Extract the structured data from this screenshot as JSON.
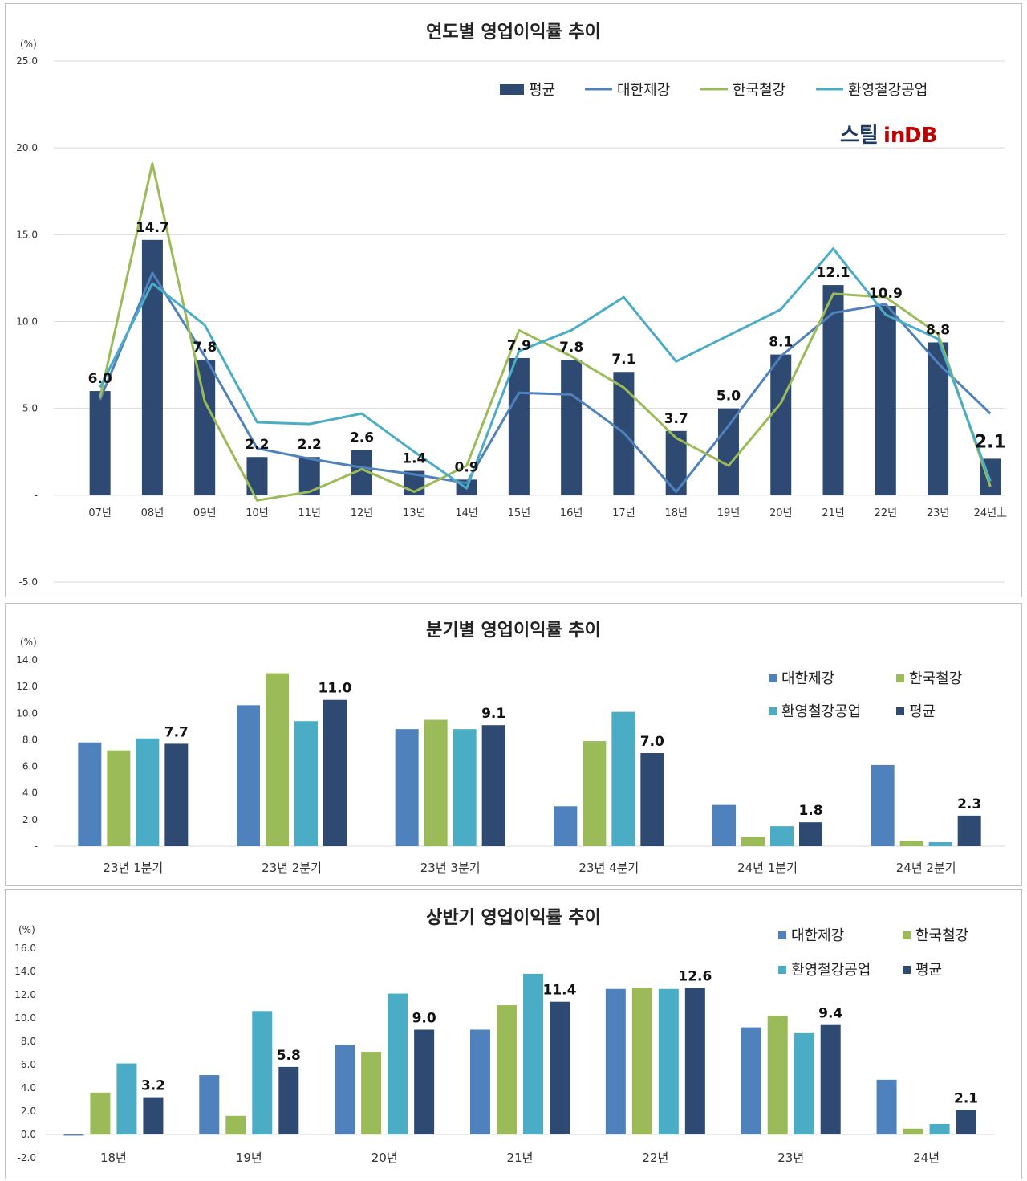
{
  "colors": {
    "avg": "#2e4a72",
    "daehan": "#4f81bd",
    "hankook": "#9bbb59",
    "hwanyoung": "#4bacc6",
    "highlight": "#c00000"
  },
  "logo": {
    "part1": "스틸",
    "part2": "in",
    "part3": "DB"
  },
  "chart_data": [
    {
      "type": "bar+line",
      "title": "연도별 영업이익률 추이",
      "unit": "(%)",
      "ylim": [
        -5,
        25
      ],
      "yticks": [
        "-5.0",
        "-",
        "5.0",
        "10.0",
        "15.0",
        "20.0",
        "25.0"
      ],
      "legend": [
        "평균",
        "대한제강",
        "한국철강",
        "환영철강공업"
      ],
      "legend_position": "top-right",
      "categories": [
        "07년",
        "08년",
        "09년",
        "10년",
        "11년",
        "12년",
        "13년",
        "14년",
        "15년",
        "16년",
        "17년",
        "18년",
        "19년",
        "20년",
        "21년",
        "22년",
        "23년",
        "24년上"
      ],
      "bar_series": {
        "name": "평균",
        "values": [
          6.0,
          14.7,
          7.8,
          2.2,
          2.2,
          2.6,
          1.4,
          0.9,
          7.9,
          7.8,
          7.1,
          3.7,
          5.0,
          8.1,
          12.1,
          10.9,
          8.8,
          2.1
        ]
      },
      "bar_labels": [
        "6.0",
        "14.7",
        "7.8",
        "2.2",
        "2.2",
        "2.6",
        "1.4",
        "0.9",
        "7.9",
        "7.8",
        "7.1",
        "3.7",
        "5.0",
        "8.1",
        "12.1",
        "10.9",
        "8.8",
        "2.1"
      ],
      "highlighted_labels": [
        7,
        17
      ],
      "line_series": [
        {
          "name": "대한제강",
          "values": [
            5.5,
            12.8,
            8.0,
            2.7,
            2.1,
            1.6,
            1.2,
            0.7,
            5.9,
            5.8,
            3.6,
            0.2,
            4.0,
            8.0,
            10.5,
            11.0,
            7.6,
            4.7
          ]
        },
        {
          "name": "한국철강",
          "values": [
            5.6,
            19.1,
            5.4,
            -0.3,
            0.2,
            1.5,
            0.2,
            1.7,
            9.5,
            8.0,
            6.2,
            3.3,
            1.7,
            5.3,
            11.6,
            11.4,
            9.3,
            0.5
          ]
        },
        {
          "name": "환영철강공업",
          "values": [
            6.2,
            12.2,
            9.8,
            4.2,
            4.1,
            4.7,
            2.5,
            0.4,
            8.3,
            9.5,
            11.4,
            7.7,
            9.2,
            10.7,
            14.2,
            10.4,
            9.0,
            0.8
          ]
        }
      ]
    },
    {
      "type": "bar",
      "title": "분기별 영업이익률 추이",
      "unit": "(%)",
      "ylim": [
        0,
        14
      ],
      "yticks": [
        "-",
        "2.0",
        "4.0",
        "6.0",
        "8.0",
        "10.0",
        "12.0",
        "14.0"
      ],
      "legend": [
        "대한제강",
        "한국철강",
        "환영철강공업",
        "평균"
      ],
      "legend_position": "top-right",
      "categories": [
        "23년 1분기",
        "23년 2분기",
        "23년 3분기",
        "23년 4분기",
        "24년 1분기",
        "24년 2분기"
      ],
      "series": [
        {
          "name": "대한제강",
          "values": [
            7.8,
            10.6,
            8.8,
            3.0,
            3.1,
            6.1
          ]
        },
        {
          "name": "한국철강",
          "values": [
            7.2,
            13.0,
            9.5,
            7.9,
            0.7,
            0.4
          ]
        },
        {
          "name": "환영철강공업",
          "values": [
            8.1,
            9.4,
            8.8,
            10.1,
            1.5,
            0.3
          ]
        },
        {
          "name": "평균",
          "values": [
            7.7,
            11.0,
            9.1,
            7.0,
            1.8,
            2.3
          ]
        }
      ],
      "avg_labels": [
        "7.7",
        "11.0",
        "9.1",
        "7.0",
        "1.8",
        "2.3"
      ]
    },
    {
      "type": "bar",
      "title": "상반기 영업이익률 추이",
      "unit": "(%)",
      "ylim": [
        -2,
        16
      ],
      "yticks": [
        "-2.0",
        "0.0",
        "2.0",
        "4.0",
        "6.0",
        "8.0",
        "10.0",
        "12.0",
        "14.0",
        "16.0"
      ],
      "legend": [
        "대한제강",
        "한국철강",
        "환영철강공업",
        "평균"
      ],
      "legend_position": "top-right",
      "categories": [
        "18년",
        "19년",
        "20년",
        "21년",
        "22년",
        "23년",
        "24년"
      ],
      "series": [
        {
          "name": "대한제강",
          "values": [
            -0.1,
            5.1,
            7.7,
            9.0,
            12.5,
            9.2,
            4.7
          ]
        },
        {
          "name": "한국철강",
          "values": [
            3.6,
            1.6,
            7.1,
            11.1,
            12.6,
            10.2,
            0.5
          ]
        },
        {
          "name": "환영철강공업",
          "values": [
            6.1,
            10.6,
            12.1,
            13.8,
            12.5,
            8.7,
            0.9
          ]
        },
        {
          "name": "평균",
          "values": [
            3.2,
            5.8,
            9.0,
            11.4,
            12.6,
            9.4,
            2.1
          ]
        }
      ],
      "avg_labels": [
        "3.2",
        "5.8",
        "9.0",
        "11.4",
        "12.6",
        "9.4",
        "2.1"
      ]
    }
  ]
}
